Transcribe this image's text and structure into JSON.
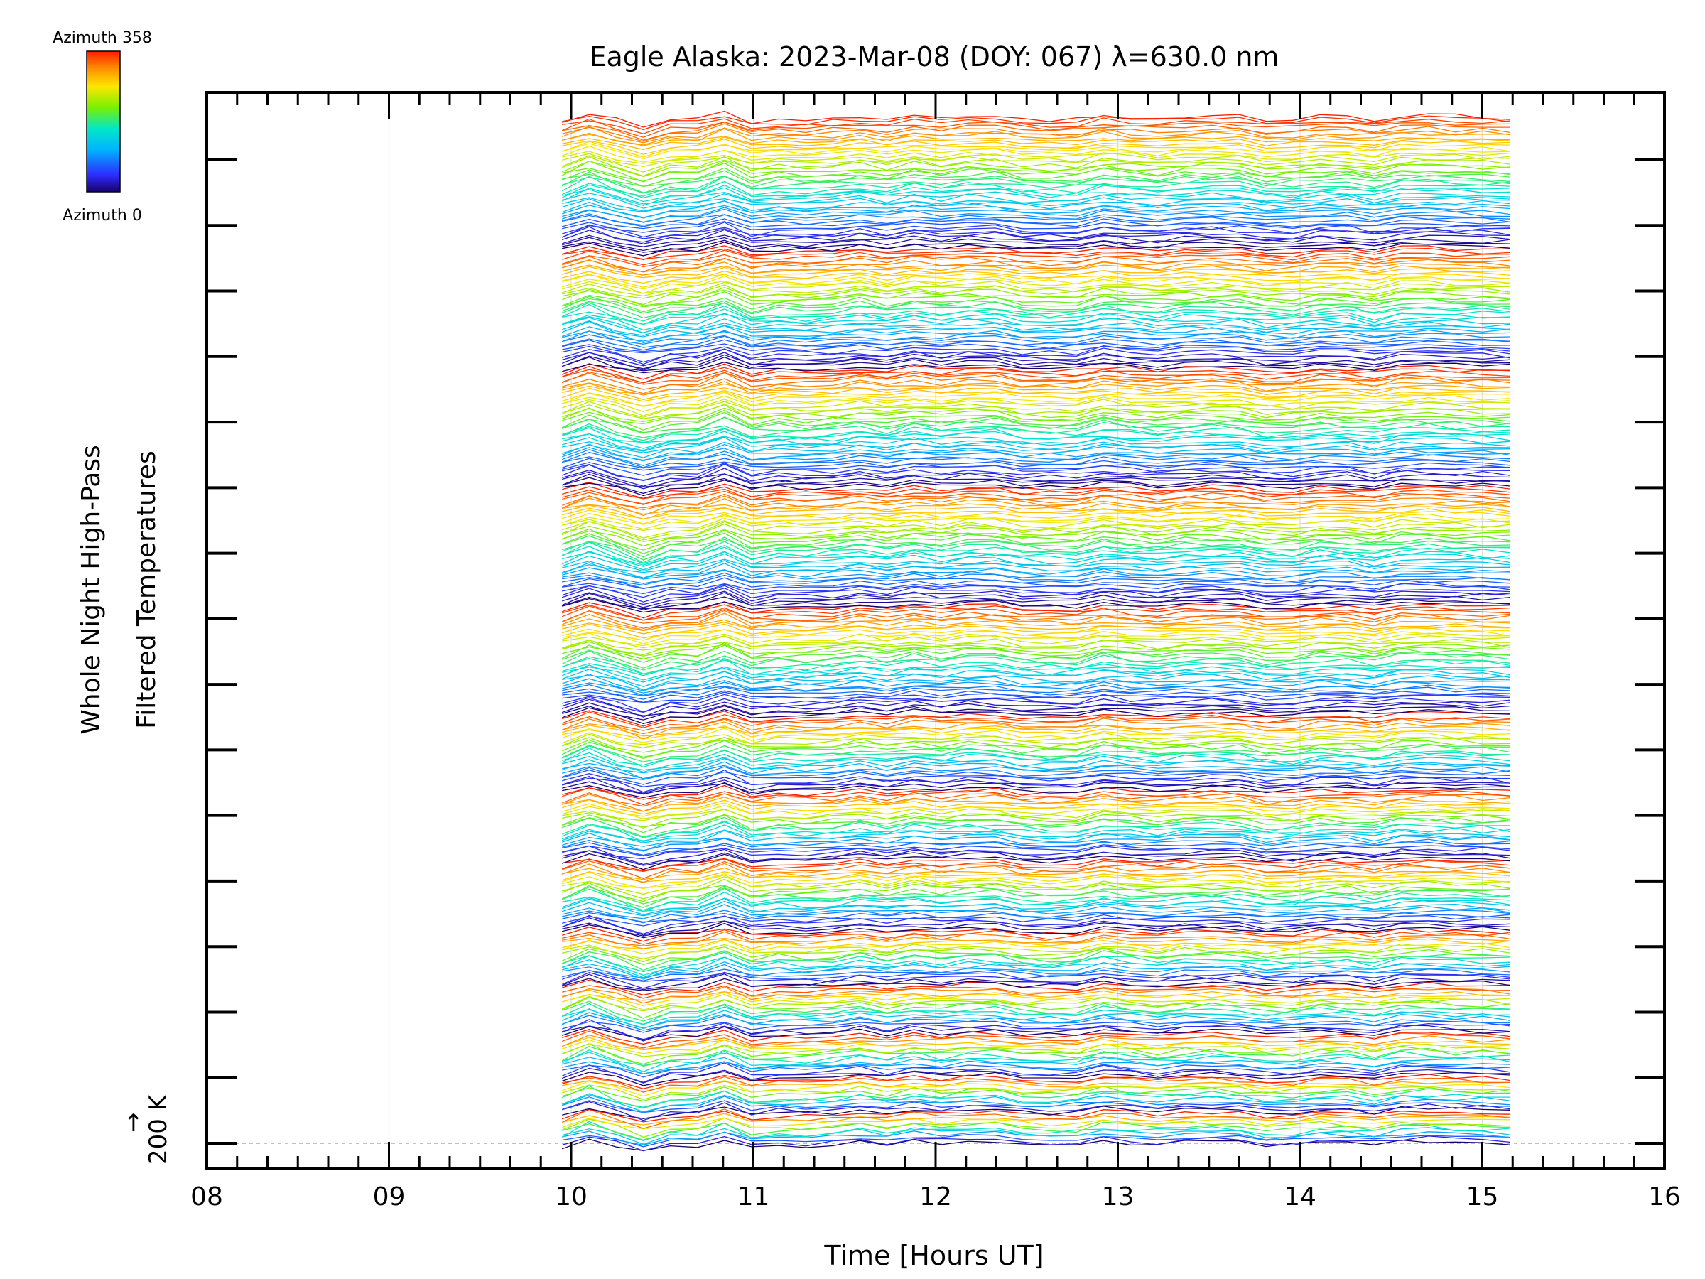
{
  "chart_data": {
    "type": "line",
    "title": "Eagle Alaska: 2023-Mar-08 (DOY: 067) λ=630.0 nm",
    "xlabel": "Time [Hours UT]",
    "ylabel_line1": "Whole Night High-Pass",
    "ylabel_line2": "Filtered Temperatures",
    "x_ticks": [
      "08",
      "09",
      "10",
      "11",
      "12",
      "13",
      "14",
      "15",
      "16"
    ],
    "xlim": [
      8,
      16
    ],
    "data_start_hour": 9.95,
    "data_end_hour": 15.15,
    "y_scale_label": "200 K",
    "y_scale_arrow": "↑",
    "colorbar": {
      "top_label": "Azimuth 358",
      "bottom_label": "Azimuth 0",
      "azimuth_min": 0,
      "azimuth_max": 358
    },
    "stack": {
      "trace_count": 380,
      "azimuth_sweeps": [
        {
          "start_trace": 0,
          "end_trace": 11
        },
        {
          "start_trace": 12,
          "end_trace": 24
        },
        {
          "start_trace": 25,
          "end_trace": 40
        },
        {
          "start_trace": 41,
          "end_trace": 58
        },
        {
          "start_trace": 59,
          "end_trace": 78
        },
        {
          "start_trace": 79,
          "end_trace": 104
        },
        {
          "start_trace": 105,
          "end_trace": 130
        },
        {
          "start_trace": 131,
          "end_trace": 158
        },
        {
          "start_trace": 159,
          "end_trace": 198
        },
        {
          "start_trace": 199,
          "end_trace": 242
        },
        {
          "start_trace": 243,
          "end_trace": 286
        },
        {
          "start_trace": 287,
          "end_trace": 330
        },
        {
          "start_trace": 331,
          "end_trace": 379
        }
      ]
    }
  }
}
